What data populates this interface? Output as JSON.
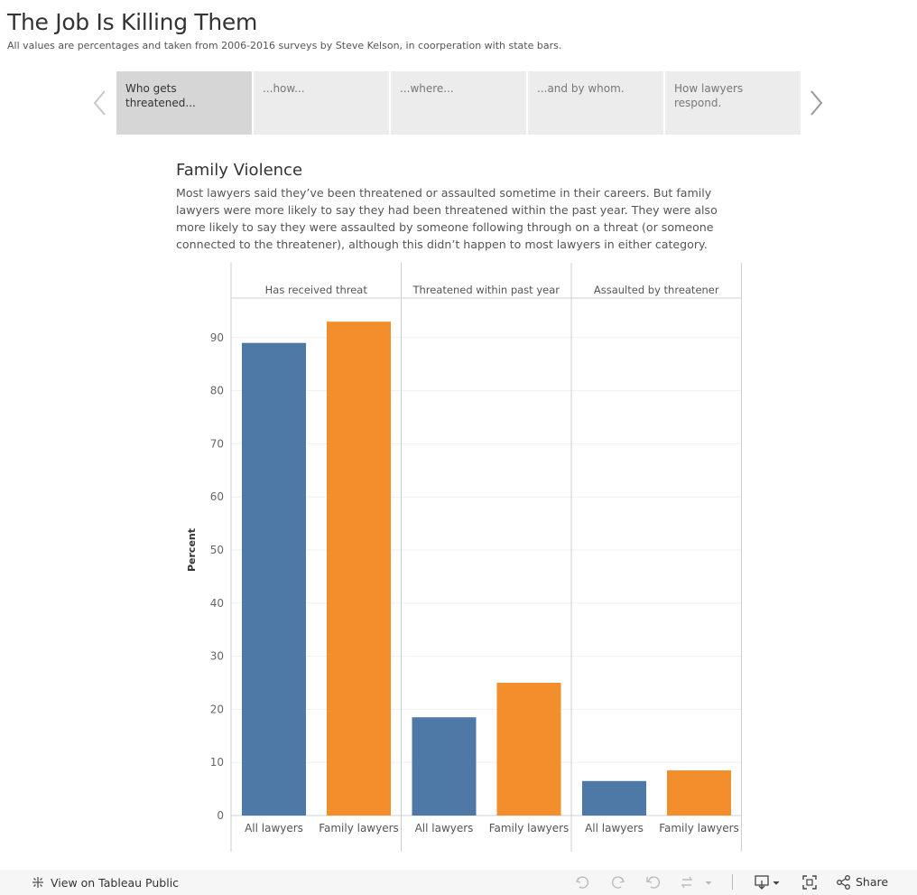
{
  "page": {
    "title": "The Job Is Killing Them",
    "subtitle": "All values are percentages and taken from 2006-2016 surveys by Steve Kelson, in coorperation with state bars."
  },
  "story": {
    "points": [
      {
        "label": "Who gets threatened...",
        "active": true
      },
      {
        "label": "...how...",
        "active": false
      },
      {
        "label": "...where...",
        "active": false
      },
      {
        "label": "...and by whom.",
        "active": false
      },
      {
        "label": "How lawyers respond.",
        "active": false
      }
    ]
  },
  "caption": {
    "title": "Family Violence",
    "text": "Most lawyers said they’ve been threatened or assaulted sometime in their careers. But family lawyers were more likely to say they had been threatened within the past year. They were also more likely to say they were assaulted by someone following through on a threat (or someone connected to the threatener), although this didn’t happen to most lawyers in either category."
  },
  "chart_data": {
    "type": "bar",
    "ylabel": "Percent",
    "ylim": [
      0,
      100
    ],
    "yticks": [
      0,
      10,
      20,
      30,
      40,
      50,
      60,
      70,
      80,
      90
    ],
    "grid": true,
    "panels": [
      {
        "name": "Has received threat",
        "categories": [
          "All lawyers",
          "Family lawyers"
        ],
        "values": [
          89,
          93
        ]
      },
      {
        "name": "Threatened within past year",
        "categories": [
          "All lawyers",
          "Family lawyers"
        ],
        "values": [
          18.5,
          25
        ]
      },
      {
        "name": "Assaulted by threatener",
        "categories": [
          "All lawyers",
          "Family lawyers"
        ],
        "values": [
          6.5,
          8.5
        ]
      }
    ],
    "colors": {
      "All lawyers": "#4e79a7",
      "Family lawyers": "#f28e2b"
    }
  },
  "footer": {
    "view_label": "View on Tableau Public",
    "share_label": "Share",
    "icons": [
      "tableau-logo-icon",
      "undo-icon",
      "redo-icon",
      "revert-icon",
      "refresh-icon",
      "download-icon",
      "fullscreen-icon",
      "share-icon"
    ]
  }
}
